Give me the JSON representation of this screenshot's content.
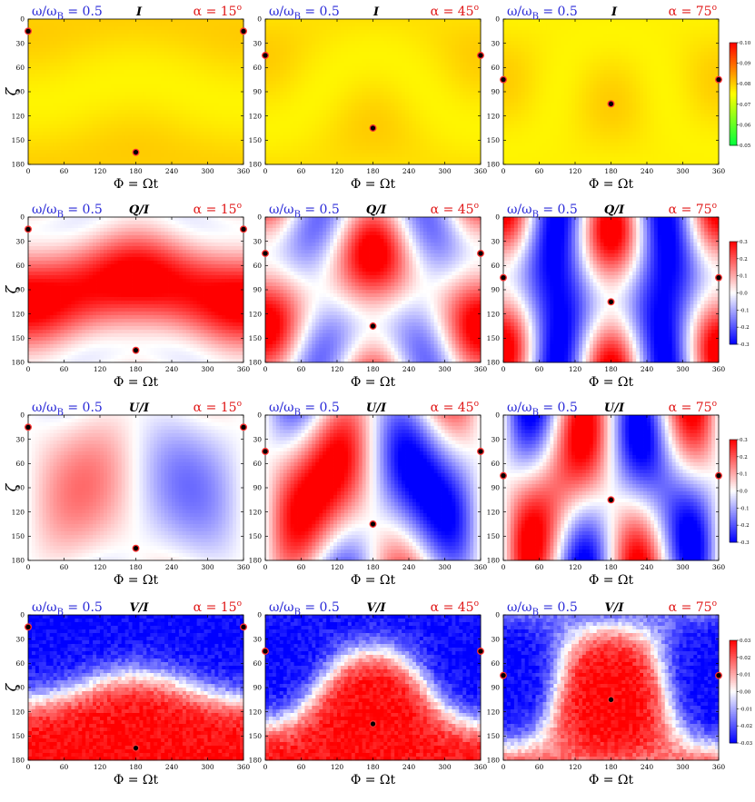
{
  "figure": {
    "ratio_label": "ω/ω",
    "ratio_sub": "B",
    "ratio_value": " = 0.5",
    "alpha_symbol": "α",
    "degree_symbol": "o",
    "xlabel": "Φ = Ωt",
    "ylabel": "ζ",
    "colors": {
      "blue_text": "#2b2bd8",
      "red_text": "#e01919",
      "marker_fill": "#000000",
      "marker_edge": "#ff3030"
    }
  },
  "chart_data": [
    {
      "type": "heatmap",
      "quantity": "I",
      "columns": [
        {
          "alpha": 15,
          "alpha_label": " = 15",
          "markers": [
            [
              0,
              15
            ],
            [
              180,
              165
            ],
            [
              360,
              15
            ]
          ]
        },
        {
          "alpha": 45,
          "alpha_label": " = 45",
          "markers": [
            [
              0,
              45
            ],
            [
              180,
              135
            ],
            [
              360,
              45
            ]
          ]
        },
        {
          "alpha": 75,
          "alpha_label": " = 75",
          "markers": [
            [
              0,
              75
            ],
            [
              180,
              105
            ],
            [
              360,
              75
            ]
          ]
        }
      ],
      "x_range": [
        0,
        360
      ],
      "x_ticks": [
        "0",
        "60",
        "120",
        "180",
        "240",
        "300",
        "360"
      ],
      "y_range": [
        0,
        180
      ],
      "y_ticks": [
        "0",
        "30",
        "60",
        "90",
        "120",
        "150",
        "180"
      ],
      "colorbar": {
        "range": [
          0.05,
          0.1
        ],
        "ticks": [
          "0.10",
          "0.09",
          "0.08",
          "0.07",
          "0.06",
          "0.05"
        ],
        "colormap": [
          "#00ff3c",
          "#ffff00",
          "#ff0000"
        ]
      }
    },
    {
      "type": "heatmap",
      "quantity": "Q/I",
      "columns": [
        {
          "alpha": 15,
          "alpha_label": " = 15",
          "markers": [
            [
              0,
              15
            ],
            [
              180,
              165
            ],
            [
              360,
              15
            ]
          ]
        },
        {
          "alpha": 45,
          "alpha_label": " = 45",
          "markers": [
            [
              0,
              45
            ],
            [
              180,
              135
            ],
            [
              360,
              45
            ]
          ]
        },
        {
          "alpha": 75,
          "alpha_label": " = 75",
          "markers": [
            [
              0,
              75
            ],
            [
              180,
              105
            ],
            [
              360,
              75
            ]
          ]
        }
      ],
      "x_range": [
        0,
        360
      ],
      "x_ticks": [
        "0",
        "60",
        "120",
        "180",
        "240",
        "300",
        "360"
      ],
      "y_range": [
        0,
        180
      ],
      "y_ticks": [
        "0",
        "30",
        "60",
        "90",
        "120",
        "150",
        "180"
      ],
      "colorbar": {
        "range": [
          -0.3,
          0.3
        ],
        "ticks": [
          "0.3",
          "0.2",
          "0.1",
          "0.0",
          "-0.1",
          "-0.2",
          "-0.3"
        ],
        "colormap": [
          "#0000ff",
          "#ffffff",
          "#ff0000"
        ]
      }
    },
    {
      "type": "heatmap",
      "quantity": "U/I",
      "columns": [
        {
          "alpha": 15,
          "alpha_label": " = 15",
          "markers": [
            [
              0,
              15
            ],
            [
              180,
              165
            ],
            [
              360,
              15
            ]
          ]
        },
        {
          "alpha": 45,
          "alpha_label": " = 45",
          "markers": [
            [
              0,
              45
            ],
            [
              180,
              135
            ],
            [
              360,
              45
            ]
          ]
        },
        {
          "alpha": 75,
          "alpha_label": " = 75",
          "markers": [
            [
              0,
              75
            ],
            [
              180,
              105
            ],
            [
              360,
              75
            ]
          ]
        }
      ],
      "x_range": [
        0,
        360
      ],
      "x_ticks": [
        "0",
        "60",
        "120",
        "180",
        "240",
        "300",
        "360"
      ],
      "y_range": [
        0,
        180
      ],
      "y_ticks": [
        "0",
        "30",
        "60",
        "90",
        "120",
        "150",
        "180"
      ],
      "colorbar": {
        "range": [
          -0.3,
          0.3
        ],
        "ticks": [
          "0.3",
          "0.2",
          "0.1",
          "0.0",
          "-0.1",
          "-0.2",
          "-0.3"
        ],
        "colormap": [
          "#0000ff",
          "#ffffff",
          "#ff0000"
        ]
      }
    },
    {
      "type": "heatmap",
      "quantity": "V/I",
      "columns": [
        {
          "alpha": 15,
          "alpha_label": " = 15",
          "markers": [
            [
              0,
              15
            ],
            [
              180,
              165
            ],
            [
              360,
              15
            ]
          ]
        },
        {
          "alpha": 45,
          "alpha_label": " = 45",
          "markers": [
            [
              0,
              45
            ],
            [
              180,
              135
            ],
            [
              360,
              45
            ]
          ]
        },
        {
          "alpha": 75,
          "alpha_label": " = 75",
          "markers": [
            [
              0,
              75
            ],
            [
              180,
              105
            ],
            [
              360,
              75
            ]
          ]
        }
      ],
      "x_range": [
        0,
        360
      ],
      "x_ticks": [
        "0",
        "60",
        "120",
        "180",
        "240",
        "300",
        "360"
      ],
      "y_range": [
        0,
        180
      ],
      "y_ticks": [
        "0",
        "30",
        "60",
        "90",
        "120",
        "150",
        "180"
      ],
      "colorbar": {
        "range": [
          -0.03,
          0.03
        ],
        "ticks": [
          "0.03",
          "0.02",
          "0.01",
          "0.00",
          "-0.01",
          "-0.02",
          "-0.03"
        ],
        "colormap": [
          "#0000ff",
          "#ffffff",
          "#ff0000"
        ]
      }
    }
  ]
}
